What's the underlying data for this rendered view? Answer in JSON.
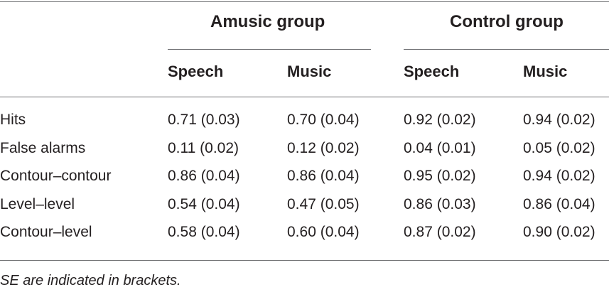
{
  "groups": {
    "amusic": "Amusic group",
    "control": "Control group"
  },
  "subheaders": {
    "amusic_speech": "Speech",
    "amusic_music": "Music",
    "control_speech": "Speech",
    "control_music": "Music"
  },
  "rows": [
    {
      "label": "Hits",
      "values": [
        "0.71 (0.03)",
        "0.70 (0.04)",
        "0.92 (0.02)",
        "0.94 (0.02)"
      ]
    },
    {
      "label": "False alarms",
      "values": [
        "0.11 (0.02)",
        "0.12 (0.02)",
        "0.04 (0.01)",
        "0.05 (0.02)"
      ]
    },
    {
      "label": "Contour–contour",
      "values": [
        "0.86 (0.04)",
        "0.86 (0.04)",
        "0.95 (0.02)",
        "0.94 (0.02)"
      ]
    },
    {
      "label": "Level–level",
      "values": [
        "0.54 (0.04)",
        "0.47 (0.05)",
        "0.86 (0.03)",
        "0.86 (0.04)"
      ]
    },
    {
      "label": "Contour–level",
      "values": [
        "0.58 (0.04)",
        "0.60 (0.04)",
        "0.87 (0.02)",
        "0.90 (0.02)"
      ]
    }
  ],
  "footnote": "SE are indicated in brackets."
}
